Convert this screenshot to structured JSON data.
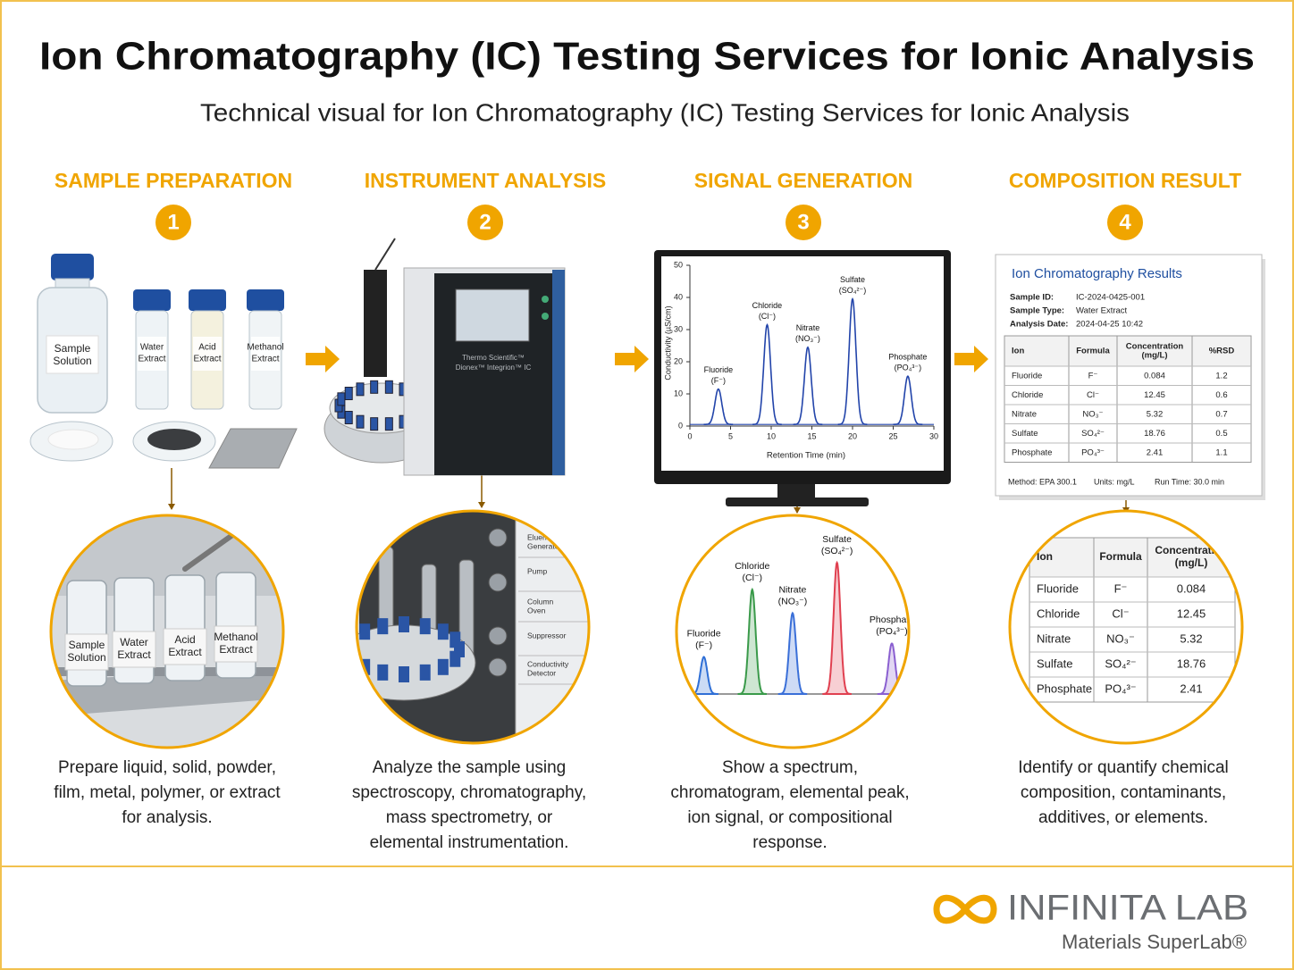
{
  "header": {
    "title": "Ion Chromatography (IC) Testing Services for Ionic Analysis",
    "subtitle": "Technical visual for Ion Chromatography (IC) Testing Services for Ionic Analysis"
  },
  "steps": [
    {
      "title": "SAMPLE PREPARATION",
      "number": "1",
      "description": "Prepare liquid, solid, powder, film, metal, polymer, or extract for analysis."
    },
    {
      "title": "INSTRUMENT ANALYSIS",
      "number": "2",
      "description": "Analyze the sample using spectroscopy, chromatography, mass spectrometry, or elemental instrumentation."
    },
    {
      "title": "SIGNAL GENERATION",
      "number": "3",
      "description": "Show a spectrum, chromatogram, elemental peak, ion signal, or compositional response."
    },
    {
      "title": "COMPOSITION RESULT",
      "number": "4",
      "description": "Identify or quantify chemical composition, contaminants, additives, or elements."
    }
  ],
  "samples": [
    [
      "Sample",
      "Solution"
    ],
    [
      "Water",
      "Extract"
    ],
    [
      "Acid",
      "Extract"
    ],
    [
      "Methanol",
      "Extract"
    ]
  ],
  "instrument": {
    "brand": [
      "Thermo Scientific™",
      "Dionex™ Integrion™ IC"
    ],
    "modules": [
      [
        "Eluent",
        "Generator"
      ],
      [
        "Pump"
      ],
      [
        "Column",
        "Oven"
      ],
      [
        "Suppressor"
      ],
      [
        "Conductivity",
        "Detector"
      ]
    ]
  },
  "chromatogram": {
    "y_label": "Conductivity (µS/cm)",
    "x_label": "Retention Time (min)",
    "xlim": [
      0,
      30
    ],
    "ylim": [
      0,
      50
    ],
    "xticks": [
      0,
      5,
      10,
      15,
      20,
      25,
      30
    ],
    "yticks": [
      0,
      10,
      20,
      30,
      40,
      50
    ],
    "peaks": [
      {
        "name": "Fluoride",
        "ion": "(F⁻)",
        "time": 3.5,
        "height": 11,
        "color": "#2f6fd6"
      },
      {
        "name": "Chloride",
        "ion": "(Cl⁻)",
        "time": 9.5,
        "height": 31,
        "color": "#3a9a4a"
      },
      {
        "name": "Nitrate",
        "ion": "(NO₃⁻)",
        "time": 14.5,
        "height": 24,
        "color": "#3a6fd8"
      },
      {
        "name": "Sulfate",
        "ion": "(SO₄²⁻)",
        "time": 20,
        "height": 39,
        "color": "#e04050"
      },
      {
        "name": "Phosphate",
        "ion": "(PO₄³⁻)",
        "time": 26.8,
        "height": 15,
        "color": "#8a5fd0"
      }
    ]
  },
  "results": {
    "title": "Ion Chromatography Results",
    "meta": [
      [
        "Sample ID:",
        "IC-2024-0425-001"
      ],
      [
        "Sample Type:",
        "Water Extract"
      ],
      [
        "Analysis Date:",
        "2024-04-25 10:42"
      ]
    ],
    "columns": [
      [
        "Ion"
      ],
      [
        "Formula"
      ],
      [
        "Concentration",
        "(mg/L)"
      ],
      [
        "%RSD"
      ]
    ],
    "rows": [
      [
        "Fluoride",
        "F⁻",
        "0.084",
        "1.2"
      ],
      [
        "Chloride",
        "Cl⁻",
        "12.45",
        "0.6"
      ],
      [
        "Nitrate",
        "NO₃⁻",
        "5.32",
        "0.7"
      ],
      [
        "Sulfate",
        "SO₄²⁻",
        "18.76",
        "0.5"
      ],
      [
        "Phosphate",
        "PO₄³⁻",
        "2.41",
        "1.1"
      ]
    ],
    "footer": [
      "Method: EPA 300.1",
      "Units: mg/L",
      "Run Time: 30.0 min"
    ]
  },
  "footer": {
    "brand": "INFINITA LAB",
    "tagline": "Materials SuperLab®"
  }
}
